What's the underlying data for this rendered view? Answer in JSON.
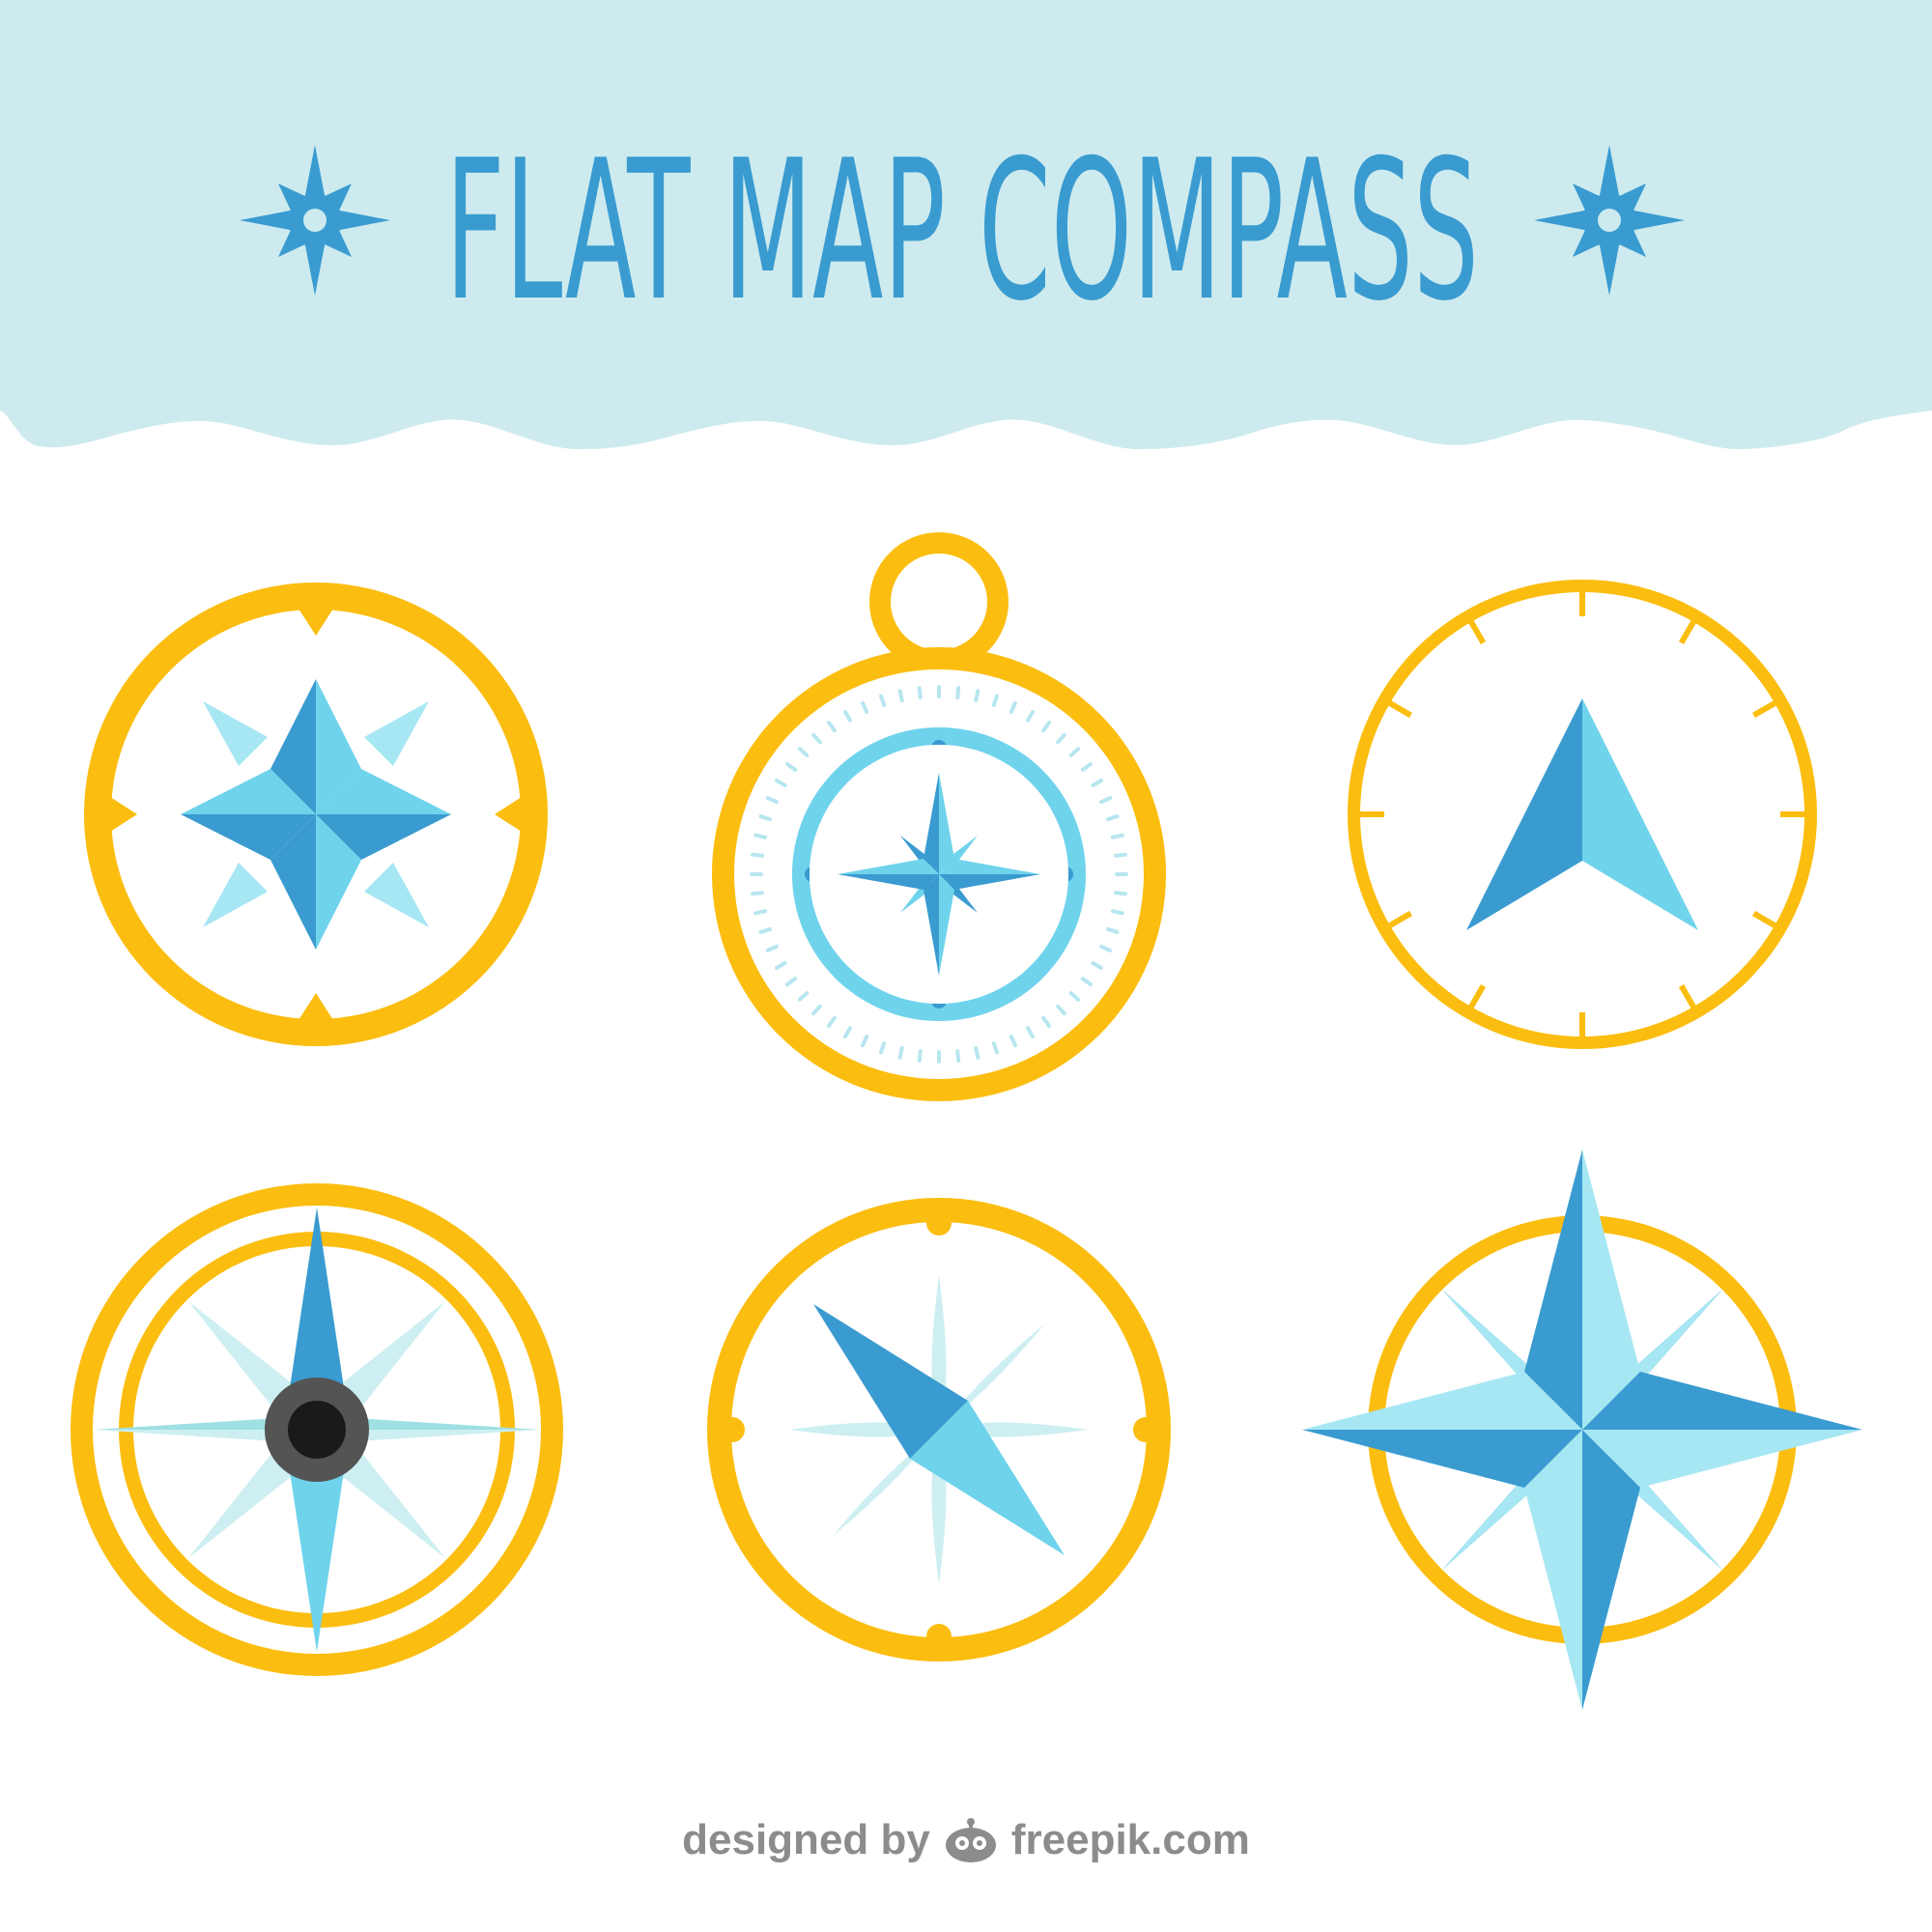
{
  "header": {
    "title": "FLAT MAP COMPASS"
  },
  "footer": {
    "designed_by": "designed by",
    "brand": "freepik.com",
    "logo_icon": "freepik-mascot-icon"
  },
  "icons": {
    "left_star": "compass-star-icon",
    "right_star": "compass-star-icon"
  },
  "compasses": [
    {
      "name": "four-point-star-compass"
    },
    {
      "name": "pocket-compass-with-ring"
    },
    {
      "name": "arrow-dial-compass"
    },
    {
      "name": "eight-point-needle-compass"
    },
    {
      "name": "diagonal-needle-compass"
    },
    {
      "name": "large-star-overlay-compass"
    }
  ],
  "colors": {
    "header_bg": "#cdebef",
    "title": "#3a9bd0",
    "gold": "#fbbd0f",
    "blue_dark": "#3a9bd0",
    "blue_mid": "#6fd3ec",
    "blue_light": "#a6e7f3",
    "blue_pale": "#cdeff2",
    "teal_pale": "#9ee0e3",
    "hub_grey": "#545454",
    "hub_black": "#1a1a1a",
    "credit_grey": "#8c8c8c"
  }
}
